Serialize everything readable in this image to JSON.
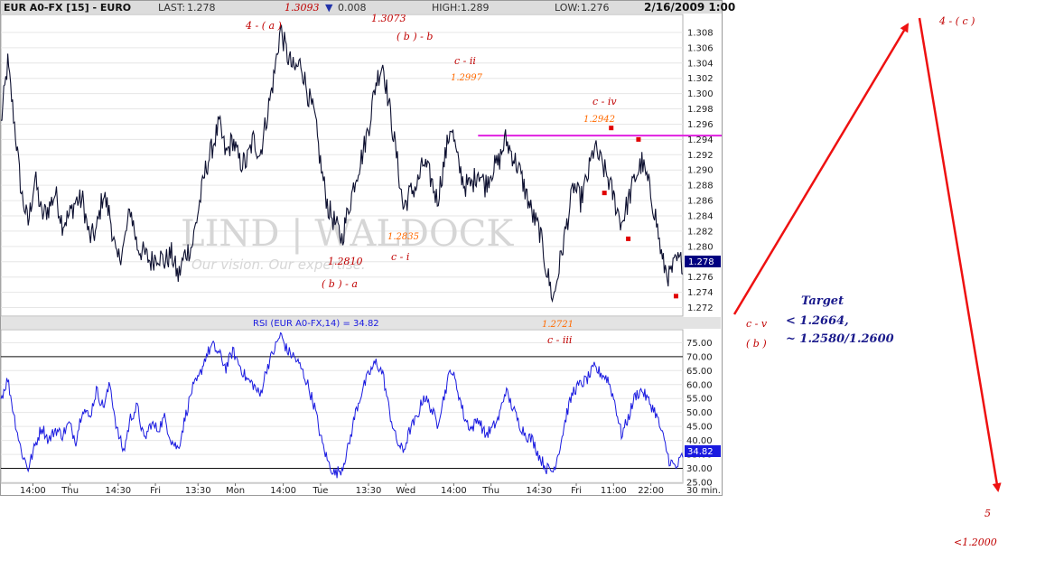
{
  "header": {
    "symbol": "EUR A0-FX [15] - EURO",
    "last_label": "LAST:",
    "last": "1.278",
    "change_value": "1.3093",
    "change_arrow": "▼",
    "change": "0.008",
    "high_label": "HIGH:",
    "high": "1.289",
    "low_label": "LOW:",
    "low": "1.276",
    "datetime": "2/16/2009 1:00"
  },
  "watermark": {
    "logo": "LIND | WALDOCK",
    "tagline": "Our vision. Our expertise."
  },
  "chart_data": [
    {
      "type": "line",
      "panel": "price",
      "ylim": [
        1.271,
        1.31
      ],
      "y_ticks": [
        "1.308",
        "1.306",
        "1.304",
        "1.302",
        "1.300",
        "1.298",
        "1.296",
        "1.294",
        "1.292",
        "1.290",
        "1.288",
        "1.286",
        "1.284",
        "1.282",
        "1.280",
        "1.278",
        "1.276",
        "1.274",
        "1.272"
      ],
      "last_value": "1.278",
      "x_index_range": [
        0,
        100
      ],
      "anchors": [
        [
          0,
          1.296
        ],
        [
          1,
          1.304
        ],
        [
          2,
          1.296
        ],
        [
          3,
          1.287
        ],
        [
          4,
          1.283
        ],
        [
          5,
          1.289
        ],
        [
          6,
          1.284
        ],
        [
          7,
          1.285
        ],
        [
          8,
          1.287
        ],
        [
          9,
          1.283
        ],
        [
          10,
          1.284
        ],
        [
          11,
          1.286
        ],
        [
          12,
          1.286
        ],
        [
          13,
          1.281
        ],
        [
          14,
          1.282
        ],
        [
          15,
          1.287
        ],
        [
          16,
          1.284
        ],
        [
          17,
          1.278
        ],
        [
          18,
          1.28
        ],
        [
          19,
          1.285
        ],
        [
          20,
          1.28
        ],
        [
          21,
          1.279
        ],
        [
          22,
          1.278
        ],
        [
          23,
          1.279
        ],
        [
          24,
          1.278
        ],
        [
          25,
          1.279
        ],
        [
          26,
          1.276
        ],
        [
          27,
          1.279
        ],
        [
          28,
          1.28
        ],
        [
          29,
          1.285
        ],
        [
          30,
          1.29
        ],
        [
          31,
          1.293
        ],
        [
          32,
          1.296
        ],
        [
          33,
          1.292
        ],
        [
          34,
          1.294
        ],
        [
          35,
          1.291
        ],
        [
          36,
          1.291
        ],
        [
          37,
          1.294
        ],
        [
          38,
          1.292
        ],
        [
          39,
          1.297
        ],
        [
          40,
          1.302
        ],
        [
          41,
          1.3085
        ],
        [
          42,
          1.305
        ],
        [
          43,
          1.303
        ],
        [
          44,
          1.304
        ],
        [
          45,
          1.3
        ],
        [
          46,
          1.297
        ],
        [
          47,
          1.29
        ],
        [
          48,
          1.285
        ],
        [
          49,
          1.283
        ],
        [
          50,
          1.281
        ],
        [
          51,
          1.285
        ],
        [
          52,
          1.289
        ],
        [
          53,
          1.292
        ],
        [
          54,
          1.296
        ],
        [
          55,
          1.3015
        ],
        [
          56,
          1.304
        ],
        [
          57,
          1.298
        ],
        [
          58,
          1.292
        ],
        [
          59,
          1.285
        ],
        [
          60,
          1.287
        ],
        [
          61,
          1.288
        ],
        [
          62,
          1.291
        ],
        [
          63,
          1.289
        ],
        [
          64,
          1.286
        ],
        [
          65,
          1.291
        ],
        [
          66,
          1.296
        ],
        [
          67,
          1.291
        ],
        [
          68,
          1.288
        ],
        [
          69,
          1.288
        ],
        [
          70,
          1.29
        ],
        [
          71,
          1.288
        ],
        [
          72,
          1.29
        ],
        [
          73,
          1.291
        ],
        [
          74,
          1.294
        ],
        [
          75,
          1.292
        ],
        [
          76,
          1.29
        ],
        [
          77,
          1.287
        ],
        [
          78,
          1.284
        ],
        [
          79,
          1.282
        ],
        [
          80,
          1.277
        ],
        [
          81,
          1.273
        ],
        [
          82,
          1.278
        ],
        [
          83,
          1.283
        ],
        [
          84,
          1.288
        ],
        [
          85,
          1.286
        ],
        [
          86,
          1.289
        ],
        [
          87,
          1.293
        ],
        [
          88,
          1.291
        ],
        [
          89,
          1.289
        ],
        [
          90,
          1.286
        ],
        [
          91,
          1.283
        ],
        [
          92,
          1.286
        ],
        [
          93,
          1.289
        ],
        [
          94,
          1.291
        ],
        [
          95,
          1.288
        ],
        [
          96,
          1.284
        ],
        [
          97,
          1.278
        ],
        [
          98,
          1.276
        ],
        [
          99,
          1.278
        ],
        [
          100,
          1.278
        ]
      ],
      "resistance_line": {
        "value": 1.2945,
        "from_index": 66,
        "to_index": 100,
        "color": "#e020e0"
      },
      "markers": [
        {
          "x": 89.5,
          "y": 1.2955
        },
        {
          "x": 93.5,
          "y": 1.294
        },
        {
          "x": 88.5,
          "y": 1.287
        },
        {
          "x": 92,
          "y": 1.281
        },
        {
          "x": 99,
          "y": 1.2735
        }
      ]
    },
    {
      "type": "line",
      "panel": "rsi",
      "title": "RSI (EUR A0-FX,14) = 34.82",
      "ylim": [
        25,
        79
      ],
      "y_ticks": [
        "75.00",
        "70.00",
        "65.00",
        "60.00",
        "55.00",
        "50.00",
        "45.00",
        "40.00",
        "35.00",
        "30.00",
        "25.00"
      ],
      "bands": [
        70,
        30
      ],
      "last_value": "34.82",
      "anchors": [
        [
          0,
          55
        ],
        [
          1,
          62
        ],
        [
          2,
          48
        ],
        [
          3,
          36
        ],
        [
          4,
          30
        ],
        [
          5,
          38
        ],
        [
          6,
          45
        ],
        [
          7,
          40
        ],
        [
          8,
          44
        ],
        [
          9,
          42
        ],
        [
          10,
          46
        ],
        [
          11,
          40
        ],
        [
          12,
          52
        ],
        [
          13,
          48
        ],
        [
          14,
          58
        ],
        [
          15,
          52
        ],
        [
          16,
          60
        ],
        [
          17,
          44
        ],
        [
          18,
          36
        ],
        [
          19,
          48
        ],
        [
          20,
          52
        ],
        [
          21,
          40
        ],
        [
          22,
          46
        ],
        [
          23,
          44
        ],
        [
          24,
          48
        ],
        [
          25,
          40
        ],
        [
          26,
          37
        ],
        [
          27,
          48
        ],
        [
          28,
          58
        ],
        [
          29,
          62
        ],
        [
          30,
          70
        ],
        [
          31,
          74
        ],
        [
          32,
          71
        ],
        [
          33,
          66
        ],
        [
          34,
          72
        ],
        [
          35,
          67
        ],
        [
          36,
          62
        ],
        [
          37,
          60
        ],
        [
          38,
          56
        ],
        [
          39,
          66
        ],
        [
          40,
          72
        ],
        [
          41,
          78
        ],
        [
          42,
          72
        ],
        [
          43,
          70
        ],
        [
          44,
          66
        ],
        [
          45,
          60
        ],
        [
          46,
          52
        ],
        [
          47,
          40
        ],
        [
          48,
          32
        ],
        [
          49,
          28
        ],
        [
          50,
          30
        ],
        [
          51,
          38
        ],
        [
          52,
          50
        ],
        [
          53,
          58
        ],
        [
          54,
          64
        ],
        [
          55,
          68
        ],
        [
          56,
          64
        ],
        [
          57,
          50
        ],
        [
          58,
          40
        ],
        [
          59,
          36
        ],
        [
          60,
          44
        ],
        [
          61,
          48
        ],
        [
          62,
          56
        ],
        [
          63,
          52
        ],
        [
          64,
          46
        ],
        [
          65,
          56
        ],
        [
          66,
          66
        ],
        [
          67,
          58
        ],
        [
          68,
          48
        ],
        [
          69,
          44
        ],
        [
          70,
          48
        ],
        [
          71,
          42
        ],
        [
          72,
          44
        ],
        [
          73,
          48
        ],
        [
          74,
          58
        ],
        [
          75,
          52
        ],
        [
          76,
          46
        ],
        [
          77,
          42
        ],
        [
          78,
          40
        ],
        [
          79,
          34
        ],
        [
          80,
          30
        ],
        [
          81,
          29
        ],
        [
          82,
          38
        ],
        [
          83,
          50
        ],
        [
          84,
          58
        ],
        [
          85,
          60
        ],
        [
          86,
          62
        ],
        [
          87,
          66
        ],
        [
          88,
          64
        ],
        [
          89,
          62
        ],
        [
          90,
          54
        ],
        [
          91,
          42
        ],
        [
          92,
          48
        ],
        [
          93,
          56
        ],
        [
          94,
          58
        ],
        [
          95,
          54
        ],
        [
          96,
          50
        ],
        [
          97,
          42
        ],
        [
          98,
          33
        ],
        [
          99,
          30
        ],
        [
          100,
          34.8
        ]
      ]
    }
  ],
  "x_axis": {
    "labels": [
      {
        "text": "14:00",
        "i": 6
      },
      {
        "text": "Thu",
        "i": 13
      },
      {
        "text": "14:30",
        "i": 22
      },
      {
        "text": "Fri",
        "i": 29
      },
      {
        "text": "13:30",
        "i": 37
      },
      {
        "text": "Mon",
        "i": 44
      },
      {
        "text": "14:00",
        "i": 53
      },
      {
        "text": "Tue",
        "i": 60
      },
      {
        "text": "13:30",
        "i": 69
      },
      {
        "text": "Wed",
        "i": 76
      },
      {
        "text": "14:00",
        "i": 85
      },
      {
        "text": "Thu",
        "i": 92
      },
      {
        "text": "14:30",
        "i": 101
      },
      {
        "text": "Fri",
        "i": 108
      },
      {
        "text": "11:00",
        "i": 115
      },
      {
        "text": "22:00",
        "i": 122
      }
    ],
    "interval": "30 min."
  },
  "annotations": {
    "a": "4 - ( a )",
    "a_val": "1.3093",
    "b_top": "1.3073",
    "b_b": "( b ) - b",
    "c_ii": "c  - ii",
    "c_ii_val": "1.2997",
    "c_iv": "c  - iv",
    "c_iv_val": "1.2942",
    "c_i_val": "1.2835",
    "c_i": "c  - i",
    "b_a_val": "1.2810",
    "b_a": "( b ) - a",
    "c_iii_val": "1.2721",
    "c_iii": "c  - iii",
    "c_v": "c  - v",
    "b": "( b )",
    "c4": "4 - ( c )",
    "five": "5",
    "lt12": "<1.2000",
    "target_title": "Target",
    "target1": "< 1.2664,",
    "target2": "~ 1.2580/1.2600"
  }
}
